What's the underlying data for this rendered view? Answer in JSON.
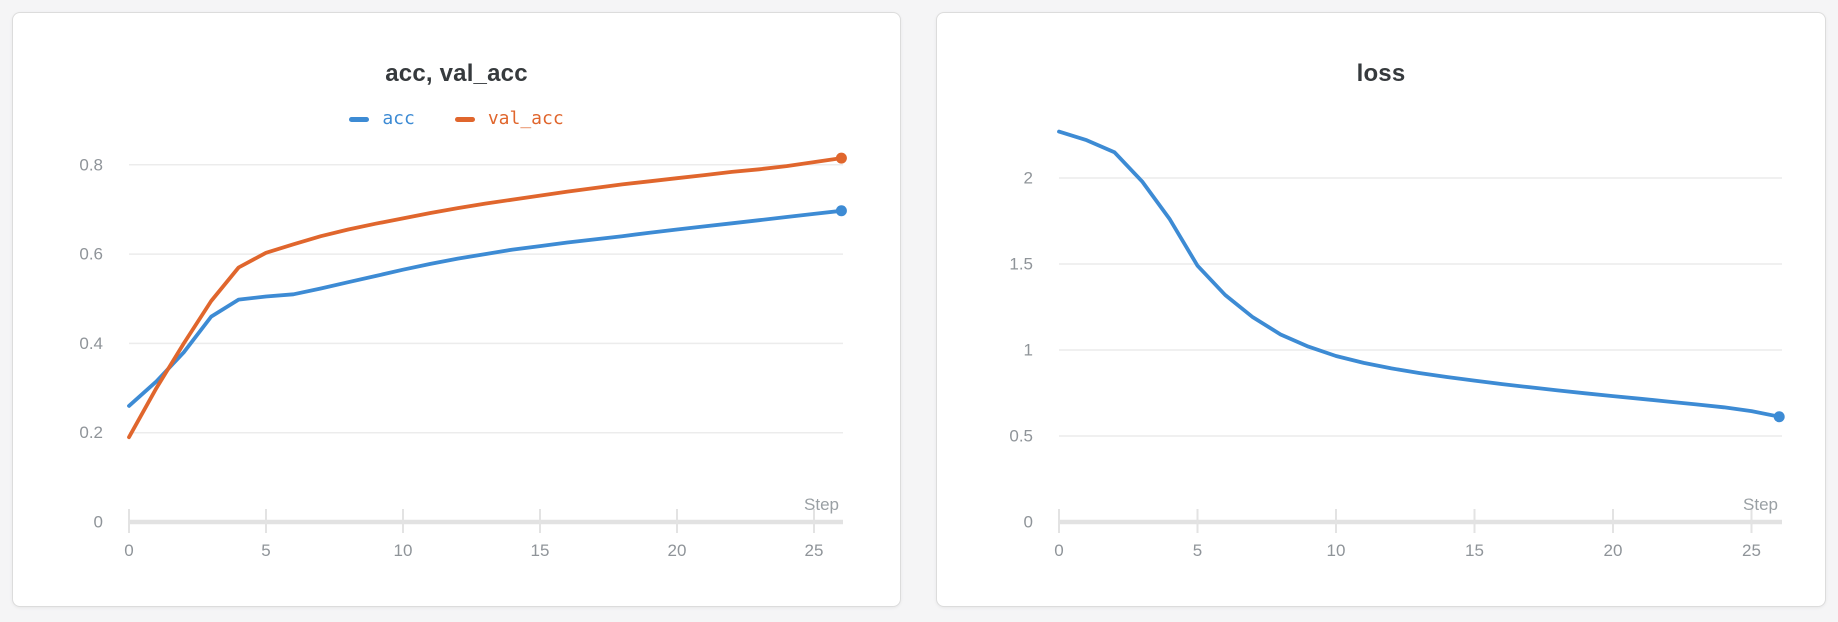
{
  "theme": {
    "background": "#f5f5f6",
    "card_background": "#ffffff",
    "card_border": "#dcdcdc",
    "grid_color": "#ececec",
    "axis_color": "#e2e2e2",
    "tick_color": "#e3e3e3",
    "tick_label_color": "#8f9499",
    "title_color": "#363a3d",
    "series_blue": "#3d8bd4",
    "series_orange": "#e0662d"
  },
  "chart_data": [
    {
      "type": "line",
      "title": "acc, val_acc",
      "xlabel": "Step",
      "ylabel": "",
      "legend": true,
      "legend_position": "top-center",
      "grid": true,
      "x_ticks": [
        0,
        5,
        10,
        15,
        20,
        25
      ],
      "y_ticks": [
        0,
        0.2,
        0.4,
        0.6,
        0.8
      ],
      "xlim": [
        0,
        26
      ],
      "ylim": [
        0,
        0.88
      ],
      "x": [
        0,
        1,
        2,
        3,
        4,
        5,
        6,
        7,
        8,
        9,
        10,
        11,
        12,
        13,
        14,
        15,
        16,
        17,
        18,
        19,
        20,
        21,
        22,
        23,
        24,
        25,
        26
      ],
      "series": [
        {
          "name": "acc",
          "color": "#3d8bd4",
          "end_marker": true,
          "values": [
            0.26,
            0.315,
            0.38,
            0.46,
            0.498,
            0.505,
            0.51,
            0.523,
            0.537,
            0.551,
            0.565,
            0.578,
            0.59,
            0.6,
            0.61,
            0.618,
            0.626,
            0.633,
            0.64,
            0.648,
            0.655,
            0.662,
            0.669,
            0.676,
            0.683,
            0.69,
            0.697
          ]
        },
        {
          "name": "val_acc",
          "color": "#e0662d",
          "end_marker": true,
          "values": [
            0.19,
            0.3,
            0.4,
            0.495,
            0.57,
            0.603,
            0.622,
            0.64,
            0.655,
            0.668,
            0.68,
            0.692,
            0.703,
            0.713,
            0.722,
            0.731,
            0.74,
            0.748,
            0.756,
            0.763,
            0.77,
            0.777,
            0.784,
            0.79,
            0.797,
            0.806,
            0.815
          ]
        }
      ]
    },
    {
      "type": "line",
      "title": "loss",
      "xlabel": "Step",
      "ylabel": "",
      "legend": false,
      "grid": true,
      "x_ticks": [
        0,
        5,
        10,
        15,
        20,
        25
      ],
      "y_ticks": [
        0,
        0.5,
        1,
        1.5,
        2
      ],
      "xlim": [
        0,
        26
      ],
      "ylim": [
        0,
        2.4
      ],
      "x": [
        0,
        1,
        2,
        3,
        4,
        5,
        6,
        7,
        8,
        9,
        10,
        11,
        12,
        13,
        14,
        15,
        16,
        17,
        18,
        19,
        20,
        21,
        22,
        23,
        24,
        25,
        26
      ],
      "series": [
        {
          "name": "loss",
          "color": "#3d8bd4",
          "end_marker": true,
          "values": [
            2.27,
            2.22,
            2.15,
            1.98,
            1.76,
            1.49,
            1.32,
            1.19,
            1.09,
            1.02,
            0.965,
            0.925,
            0.893,
            0.866,
            0.843,
            0.822,
            0.802,
            0.783,
            0.765,
            0.748,
            0.732,
            0.716,
            0.7,
            0.684,
            0.667,
            0.645,
            0.612
          ]
        }
      ]
    }
  ]
}
